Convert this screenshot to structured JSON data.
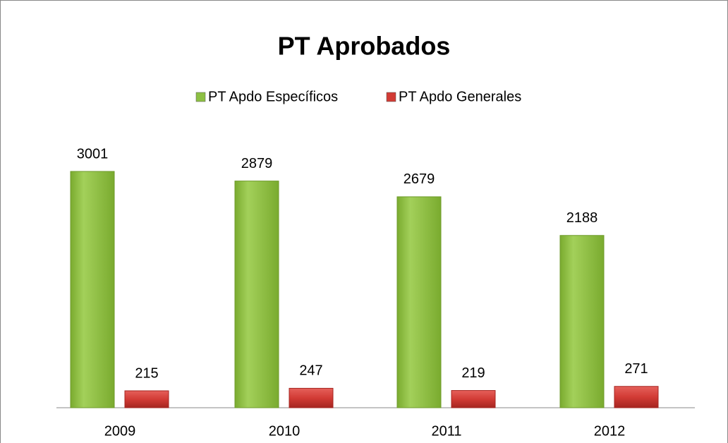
{
  "chart_data": {
    "type": "bar",
    "title": "PT Aprobados",
    "categories": [
      "2009",
      "2010",
      "2011",
      "2012"
    ],
    "series": [
      {
        "name": "PT Apdo Específicos",
        "color": "#8dc043",
        "values": [
          3001,
          2879,
          2679,
          2188
        ]
      },
      {
        "name": "PT Apdo Generales",
        "color": "#d23b35",
        "values": [
          215,
          247,
          219,
          271
        ]
      }
    ],
    "legend": "top"
  }
}
